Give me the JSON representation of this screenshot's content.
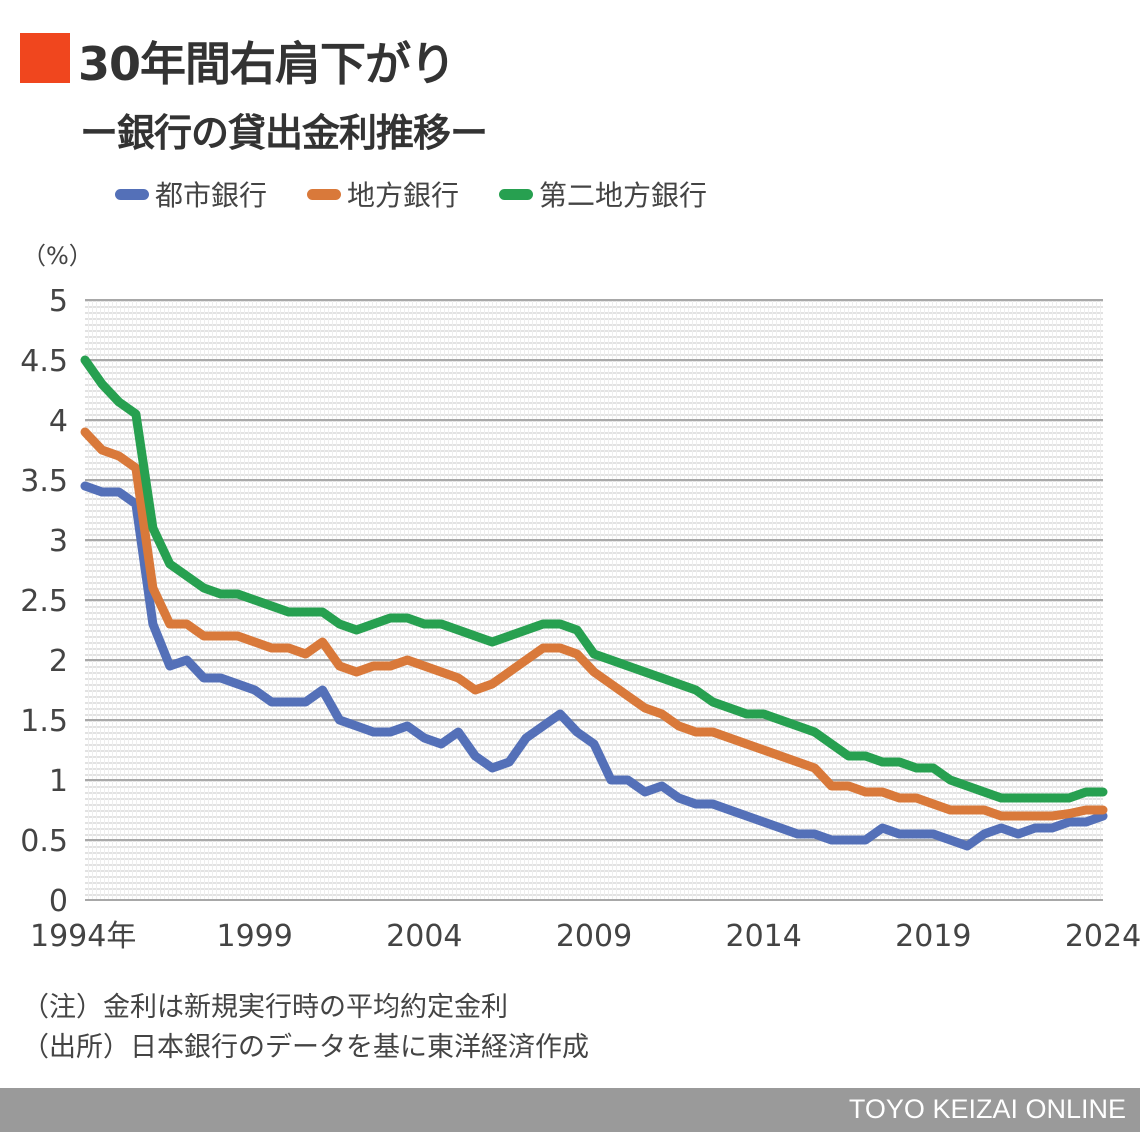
{
  "header": {
    "title": "30年間右肩下がり",
    "subtitle": "ー銀行の貸出金利推移ー",
    "accent_color": "#f0461e"
  },
  "notes": [
    "（注）金利は新規実行時の平均約定金利",
    "（出所）日本銀行のデータを基に東洋経済作成"
  ],
  "footer": {
    "brand": "TOYO KEIZAI ONLINE"
  },
  "chart_data": {
    "type": "line",
    "title": "30年間右肩下がり ー銀行の貸出金利推移ー",
    "ylabel": "（%）",
    "xlabel": "",
    "ylim": [
      0,
      5
    ],
    "xlim": [
      1994,
      2024
    ],
    "yticks": [
      0,
      0.5,
      1,
      1.5,
      2,
      2.5,
      3,
      3.5,
      4,
      4.5,
      5
    ],
    "ytick_labels": [
      "0",
      "0.5",
      "1",
      "1.5",
      "2",
      "2.5",
      "3",
      "3.5",
      "4",
      "4.5",
      "5"
    ],
    "xticks": [
      1994,
      1999,
      2004,
      2009,
      2014,
      2019,
      2024
    ],
    "xtick_labels": [
      "1994年",
      "1999",
      "2004",
      "2009",
      "2014",
      "2019",
      "2024"
    ],
    "grid": true,
    "legend_position": "top-left",
    "x": [
      1994,
      1994.5,
      1995,
      1995.5,
      1996,
      1996.5,
      1997,
      1997.5,
      1998,
      1998.5,
      1999,
      1999.5,
      2000,
      2000.5,
      2001,
      2001.5,
      2002,
      2002.5,
      2003,
      2003.5,
      2004,
      2004.5,
      2005,
      2005.5,
      2006,
      2006.5,
      2007,
      2007.5,
      2008,
      2008.5,
      2009,
      2009.5,
      2010,
      2010.5,
      2011,
      2011.5,
      2012,
      2012.5,
      2013,
      2013.5,
      2014,
      2014.5,
      2015,
      2015.5,
      2016,
      2016.5,
      2017,
      2017.5,
      2018,
      2018.5,
      2019,
      2019.5,
      2020,
      2020.5,
      2021,
      2021.5,
      2022,
      2022.5,
      2023,
      2023.5,
      2024
    ],
    "series": [
      {
        "name": "都市銀行",
        "color": "#5470b8",
        "values": [
          3.45,
          3.4,
          3.4,
          3.3,
          2.3,
          1.95,
          2.0,
          1.85,
          1.85,
          1.8,
          1.75,
          1.65,
          1.65,
          1.65,
          1.75,
          1.5,
          1.45,
          1.4,
          1.4,
          1.45,
          1.35,
          1.3,
          1.4,
          1.2,
          1.1,
          1.15,
          1.35,
          1.45,
          1.55,
          1.4,
          1.3,
          1.0,
          1.0,
          0.9,
          0.95,
          0.85,
          0.8,
          0.8,
          0.75,
          0.7,
          0.65,
          0.6,
          0.55,
          0.55,
          0.5,
          0.5,
          0.5,
          0.6,
          0.55,
          0.55,
          0.55,
          0.5,
          0.45,
          0.55,
          0.6,
          0.55,
          0.6,
          0.6,
          0.65,
          0.65,
          0.7
        ]
      },
      {
        "name": "地方銀行",
        "color": "#d9793a",
        "values": [
          3.9,
          3.75,
          3.7,
          3.6,
          2.6,
          2.3,
          2.3,
          2.2,
          2.2,
          2.2,
          2.15,
          2.1,
          2.1,
          2.05,
          2.15,
          1.95,
          1.9,
          1.95,
          1.95,
          2.0,
          1.95,
          1.9,
          1.85,
          1.75,
          1.8,
          1.9,
          2.0,
          2.1,
          2.1,
          2.05,
          1.9,
          1.8,
          1.7,
          1.6,
          1.55,
          1.45,
          1.4,
          1.4,
          1.35,
          1.3,
          1.25,
          1.2,
          1.15,
          1.1,
          0.95,
          0.95,
          0.9,
          0.9,
          0.85,
          0.85,
          0.8,
          0.75,
          0.75,
          0.75,
          0.7,
          0.7,
          0.7,
          0.7,
          0.72,
          0.75,
          0.75
        ]
      },
      {
        "name": "第二地方銀行",
        "color": "#27a050",
        "values": [
          4.5,
          4.3,
          4.15,
          4.05,
          3.1,
          2.8,
          2.7,
          2.6,
          2.55,
          2.55,
          2.5,
          2.45,
          2.4,
          2.4,
          2.4,
          2.3,
          2.25,
          2.3,
          2.35,
          2.35,
          2.3,
          2.3,
          2.25,
          2.2,
          2.15,
          2.2,
          2.25,
          2.3,
          2.3,
          2.25,
          2.05,
          2.0,
          1.95,
          1.9,
          1.85,
          1.8,
          1.75,
          1.65,
          1.6,
          1.55,
          1.55,
          1.5,
          1.45,
          1.4,
          1.3,
          1.2,
          1.2,
          1.15,
          1.15,
          1.1,
          1.1,
          1.0,
          0.95,
          0.9,
          0.85,
          0.85,
          0.85,
          0.85,
          0.85,
          0.9,
          0.9
        ]
      }
    ]
  }
}
